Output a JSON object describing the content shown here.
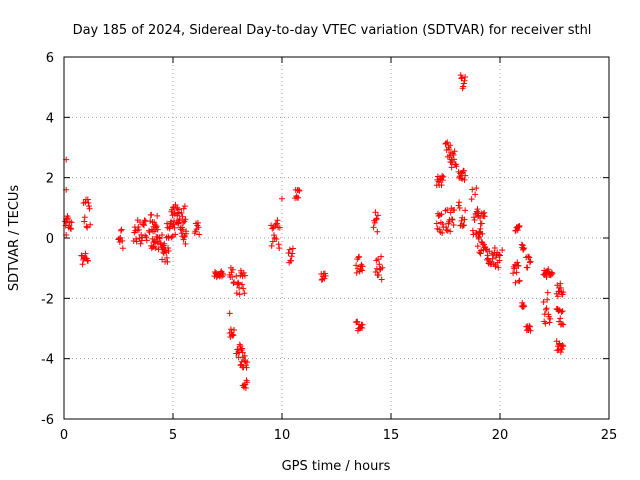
{
  "chart_data": {
    "type": "scatter",
    "title": "Day 185 of 2024, Sidereal Day-to-day VTEC variation (SDTVAR) for receiver sthl",
    "xlabel": "GPS time / hours",
    "ylabel": "SDTVAR / TECUs",
    "xlim": [
      0,
      25
    ],
    "ylim": [
      -6,
      6
    ],
    "xticks": [
      0,
      5,
      10,
      15,
      20,
      25
    ],
    "yticks": [
      -6,
      -4,
      -2,
      0,
      2,
      4,
      6
    ],
    "grid": true,
    "marker": "plus",
    "colors": {
      "points": "#ff0000",
      "axes": "#000000",
      "grid": "#a0a0a0"
    },
    "series": [
      {
        "name": "SDTVAR",
        "clusters": [
          {
            "x0": 0.05,
            "x1": 0.35,
            "y0": 0.2,
            "y1": 0.8
          },
          {
            "x0": 0.8,
            "x1": 1.1,
            "y0": -0.9,
            "y1": -0.5
          },
          {
            "x0": 0.9,
            "x1": 1.2,
            "y0": 0.3,
            "y1": 1.3
          },
          {
            "x0": 2.5,
            "x1": 2.7,
            "y0": -0.4,
            "y1": 0.4
          },
          {
            "x0": 3.2,
            "x1": 3.8,
            "y0": -0.2,
            "y1": 0.6
          },
          {
            "x0": 3.9,
            "x1": 4.3,
            "y0": 0.1,
            "y1": 0.8
          },
          {
            "x0": 4.0,
            "x1": 4.6,
            "y0": -0.4,
            "y1": 0.1
          },
          {
            "x0": 4.5,
            "x1": 4.8,
            "y0": -0.8,
            "y1": -0.2
          },
          {
            "x0": 4.7,
            "x1": 5.1,
            "y0": 0.0,
            "y1": 0.6
          },
          {
            "x0": 4.9,
            "x1": 5.3,
            "y0": 0.4,
            "y1": 1.1
          },
          {
            "x0": 5.2,
            "x1": 5.6,
            "y0": 0.2,
            "y1": 1.2
          },
          {
            "x0": 5.4,
            "x1": 5.6,
            "y0": -0.2,
            "y1": 0.3
          },
          {
            "x0": 6.0,
            "x1": 6.2,
            "y0": 0.0,
            "y1": 0.8
          },
          {
            "x0": 6.9,
            "x1": 7.3,
            "y0": -1.3,
            "y1": -1.1
          },
          {
            "x0": 7.6,
            "x1": 7.8,
            "y0": -1.5,
            "y1": -0.9
          },
          {
            "x0": 7.6,
            "x1": 7.8,
            "y0": -3.3,
            "y1": -3.0
          },
          {
            "x0": 7.9,
            "x1": 8.3,
            "y0": -1.9,
            "y1": -1.0
          },
          {
            "x0": 7.9,
            "x1": 8.2,
            "y0": -4.1,
            "y1": -3.5
          },
          {
            "x0": 8.1,
            "x1": 8.4,
            "y0": -4.3,
            "y1": -3.9
          },
          {
            "x0": 8.2,
            "x1": 8.4,
            "y0": -5.0,
            "y1": -4.7
          },
          {
            "x0": 9.5,
            "x1": 9.9,
            "y0": -0.5,
            "y1": 0.9
          },
          {
            "x0": 10.3,
            "x1": 10.5,
            "y0": -0.9,
            "y1": -0.2
          },
          {
            "x0": 10.6,
            "x1": 10.8,
            "y0": 1.3,
            "y1": 1.6
          },
          {
            "x0": 11.8,
            "x1": 12.0,
            "y0": -1.4,
            "y1": -1.1
          },
          {
            "x0": 13.4,
            "x1": 13.7,
            "y0": -1.2,
            "y1": -0.5
          },
          {
            "x0": 13.4,
            "x1": 13.7,
            "y0": -3.1,
            "y1": -2.6
          },
          {
            "x0": 14.2,
            "x1": 14.4,
            "y0": 0.2,
            "y1": 0.9
          },
          {
            "x0": 14.3,
            "x1": 14.6,
            "y0": -1.6,
            "y1": -0.6
          },
          {
            "x0": 17.1,
            "x1": 17.4,
            "y0": 0.0,
            "y1": 0.9
          },
          {
            "x0": 17.1,
            "x1": 17.4,
            "y0": 1.7,
            "y1": 2.1
          },
          {
            "x0": 17.5,
            "x1": 17.9,
            "y0": 0.2,
            "y1": 1.0
          },
          {
            "x0": 17.5,
            "x1": 17.8,
            "y0": 2.5,
            "y1": 3.4
          },
          {
            "x0": 17.7,
            "x1": 18.0,
            "y0": 2.3,
            "y1": 2.9
          },
          {
            "x0": 18.1,
            "x1": 18.4,
            "y0": 0.3,
            "y1": 1.2
          },
          {
            "x0": 18.1,
            "x1": 18.4,
            "y0": 1.9,
            "y1": 2.3
          },
          {
            "x0": 18.2,
            "x1": 18.4,
            "y0": 4.9,
            "y1": 5.4
          },
          {
            "x0": 18.7,
            "x1": 19.1,
            "y0": 0.1,
            "y1": 1.8
          },
          {
            "x0": 18.9,
            "x1": 19.3,
            "y0": -0.4,
            "y1": 0.9
          },
          {
            "x0": 19.0,
            "x1": 19.4,
            "y0": -0.6,
            "y1": 0.2
          },
          {
            "x0": 19.4,
            "x1": 20.0,
            "y0": -1.0,
            "y1": -0.3
          },
          {
            "x0": 20.7,
            "x1": 20.9,
            "y0": 0.2,
            "y1": 0.4
          },
          {
            "x0": 20.6,
            "x1": 20.9,
            "y0": -1.5,
            "y1": -0.8
          },
          {
            "x0": 21.0,
            "x1": 21.1,
            "y0": -2.3,
            "y1": -2.1
          },
          {
            "x0": 21.0,
            "x1": 21.1,
            "y0": -0.4,
            "y1": -0.2
          },
          {
            "x0": 21.2,
            "x1": 21.4,
            "y0": -1.1,
            "y1": -0.6
          },
          {
            "x0": 21.2,
            "x1": 21.4,
            "y0": -3.1,
            "y1": -2.9
          },
          {
            "x0": 22.0,
            "x1": 22.4,
            "y0": -1.3,
            "y1": -1.0
          },
          {
            "x0": 22.0,
            "x1": 22.3,
            "y0": -2.9,
            "y1": -1.8
          },
          {
            "x0": 22.6,
            "x1": 22.9,
            "y0": -3.8,
            "y1": -3.4
          },
          {
            "x0": 22.6,
            "x1": 22.9,
            "y0": -2.9,
            "y1": -2.3
          },
          {
            "x0": 22.6,
            "x1": 22.9,
            "y0": -2.0,
            "y1": -1.5
          }
        ],
        "outliers": [
          {
            "x": 0.1,
            "y": 2.6
          },
          {
            "x": 0.1,
            "y": 1.6
          },
          {
            "x": 0.1,
            "y": 0.1
          },
          {
            "x": 7.6,
            "y": -2.5
          },
          {
            "x": 10.0,
            "y": 1.3
          },
          {
            "x": 19.8,
            "y": -0.9
          },
          {
            "x": 20.1,
            "y": -0.4
          }
        ]
      }
    ]
  }
}
